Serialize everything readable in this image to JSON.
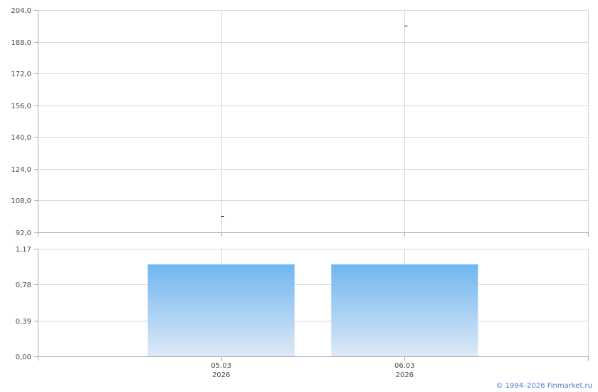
{
  "chart_data": [
    {
      "type": "line",
      "categories": [
        "05.03\n2026",
        "06.03\n2026"
      ],
      "values": [
        100.3,
        196.1
      ],
      "ylim": [
        92.0,
        204.0
      ],
      "yticks": [
        "92,0",
        "108,0",
        "124,0",
        "140,0",
        "156,0",
        "172,0",
        "188,0",
        "204,0"
      ],
      "grid": true,
      "marker_color": "#000000"
    },
    {
      "type": "bar",
      "categories": [
        "05.03",
        "06.03"
      ],
      "category_years": [
        "2026",
        "2026"
      ],
      "values": [
        1.0,
        1.0
      ],
      "ylim": [
        0,
        1.17
      ],
      "yticks": [
        "0,00",
        "0,39",
        "0,78",
        "1,17"
      ],
      "grid": true,
      "bar_color_top": "#70b6ef",
      "bar_color_bottom": "#dde9f6"
    }
  ],
  "copyright": "© 1994–2026 Finmarket.ru"
}
